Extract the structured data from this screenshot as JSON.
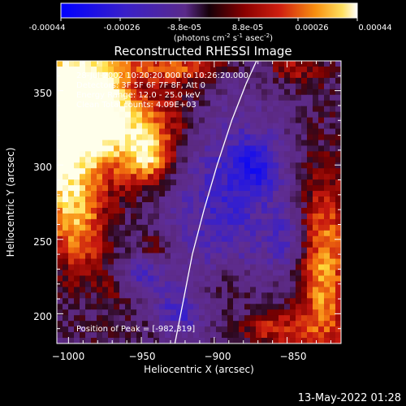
{
  "colors": {
    "background": "#000000",
    "foreground": "#ffffff",
    "colormap": [
      "#0000ff",
      "#3020d0",
      "#5a2aa0",
      "#6a2a8a",
      "#2a0a10",
      "#6a0000",
      "#c01010",
      "#f06010",
      "#ffc000",
      "#ffffff"
    ]
  },
  "colorbar": {
    "tick_labels": [
      "-0.00044",
      "-0.00026",
      "-8.8e-05",
      "8.8e-05",
      "0.00026",
      "0.00044"
    ],
    "units_text": "(photons cm",
    "units_sup1": "-2",
    "units_mid1": " s",
    "units_sup2": "-1",
    "units_mid2": " asec",
    "units_sup3": "-2",
    "units_end": ")",
    "range": [
      -0.00044,
      0.00044
    ]
  },
  "chart_data": {
    "type": "heatmap",
    "title": "Reconstructed RHESSI Image",
    "xlabel": "Heliocentric X (arcsec)",
    "ylabel": "Heliocentric Y (arcsec)",
    "xlim": [
      -1008,
      -813
    ],
    "ylim": [
      180,
      370
    ],
    "x_ticks": [
      -1000,
      -950,
      -900,
      -850
    ],
    "y_ticks": [
      200,
      250,
      300,
      350
    ],
    "x_tick_labels": [
      "−1000",
      "−950",
      "−900",
      "−850"
    ],
    "y_tick_labels": [
      "200",
      "250",
      "300",
      "350"
    ],
    "info_lines": [
      "28-Jul-2002 10:20:20.000 to 10:26:20.000",
      "Detectors: 3F 5F 6F 7F 8F, Att 0",
      "Energy Range: 12.0 - 25.0 keV",
      "Clean     Total counts: 4.09E+03"
    ],
    "peak_label": "Position of Peak = [-982,319]",
    "peak_position": [
      -982,
      319
    ],
    "limb_curve": [
      [
        -927,
        180
      ],
      [
        -921,
        210
      ],
      [
        -915,
        240
      ],
      [
        -907,
        270
      ],
      [
        -898,
        300
      ],
      [
        -888,
        330
      ],
      [
        -878,
        355
      ],
      [
        -871,
        370
      ]
    ],
    "emission_blobs": [
      {
        "x": -975,
        "y": 330,
        "sx": 40,
        "sy": 28,
        "amp": 0.95
      },
      {
        "x": -1000,
        "y": 355,
        "sx": 25,
        "sy": 25,
        "amp": 0.7
      },
      {
        "x": -1005,
        "y": 290,
        "sx": 14,
        "sy": 30,
        "amp": 0.6
      },
      {
        "x": -945,
        "y": 305,
        "sx": 10,
        "sy": 12,
        "amp": 0.55
      },
      {
        "x": -990,
        "y": 255,
        "sx": 12,
        "sy": 22,
        "amp": 0.45
      },
      {
        "x": -825,
        "y": 230,
        "sx": 12,
        "sy": 45,
        "amp": 0.7
      },
      {
        "x": -860,
        "y": 190,
        "sx": 18,
        "sy": 10,
        "amp": 0.45
      },
      {
        "x": -890,
        "y": 220,
        "sx": 14,
        "sy": 12,
        "amp": 0.3
      },
      {
        "x": -965,
        "y": 220,
        "sx": 10,
        "sy": 10,
        "amp": 0.25
      },
      {
        "x": -940,
        "y": 245,
        "sx": 8,
        "sy": 8,
        "amp": 0.3
      },
      {
        "x": -920,
        "y": 365,
        "sx": 22,
        "sy": 6,
        "amp": 0.45
      },
      {
        "x": -845,
        "y": 365,
        "sx": 12,
        "sy": 8,
        "amp": 0.35
      }
    ],
    "negative_blobs": [
      {
        "x": -895,
        "y": 280,
        "sx": 30,
        "sy": 55,
        "amp": -0.55
      },
      {
        "x": -950,
        "y": 225,
        "sx": 12,
        "sy": 10,
        "amp": -0.5
      },
      {
        "x": -925,
        "y": 200,
        "sx": 10,
        "sy": 10,
        "amp": -0.45
      },
      {
        "x": -870,
        "y": 300,
        "sx": 12,
        "sy": 14,
        "amp": -0.45
      },
      {
        "x": -850,
        "y": 250,
        "sx": 10,
        "sy": 14,
        "amp": -0.35
      },
      {
        "x": -950,
        "y": 350,
        "sx": 12,
        "sy": 10,
        "amp": -0.3
      }
    ]
  },
  "footer": {
    "date_stamp": "13-May-2022 01:28"
  }
}
